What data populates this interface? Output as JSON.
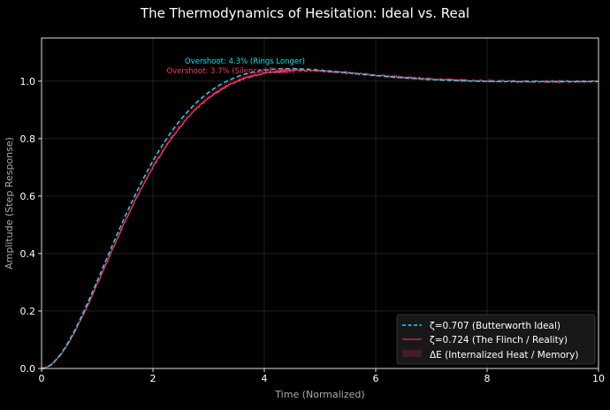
{
  "chart_data": {
    "type": "line",
    "title": "The Thermodynamics of Hesitation: Ideal vs. Real",
    "xlabel": "Time (Normalized)",
    "ylabel": "Amplitude (Step Response)",
    "xlim": [
      0,
      10
    ],
    "ylim": [
      0,
      1.15
    ],
    "xticks": [
      0,
      2,
      4,
      6,
      8,
      10
    ],
    "yticks": [
      0.0,
      0.2,
      0.4,
      0.6,
      0.8,
      1.0
    ],
    "xtick_labels": [
      "0",
      "2",
      "4",
      "6",
      "8",
      "10"
    ],
    "ytick_labels": [
      "0.0",
      "0.2",
      "0.4",
      "0.6",
      "0.8",
      "1.0"
    ],
    "grid": true,
    "legend_position": "bottom-right",
    "series": [
      {
        "name": "ζ=0.707 (Butterworth Ideal)",
        "model": "second-order step response",
        "zeta": 0.707,
        "omega_n": 1.0,
        "color": "#00e5ee",
        "style": "dashed"
      },
      {
        "name": "ζ=0.724 (The Flinch / Reality)",
        "model": "second-order step response with noise",
        "zeta": 0.724,
        "omega_n": 0.98,
        "noise": 0.003,
        "color": "#ff3366",
        "style": "solid"
      }
    ],
    "fill": {
      "name": "ΔE (Internalized Heat / Memory)",
      "color": "#ff3366"
    },
    "annotations": [
      {
        "text": "Overshoot: 4.3% (Rings Longer)",
        "x": 4.4,
        "y": 1.07,
        "color": "#00e5ee"
      },
      {
        "text": "Overshoot: 3.7% (Silenced Faster)",
        "x": 4.1,
        "y": 1.035,
        "color": "#ff3366"
      }
    ]
  }
}
